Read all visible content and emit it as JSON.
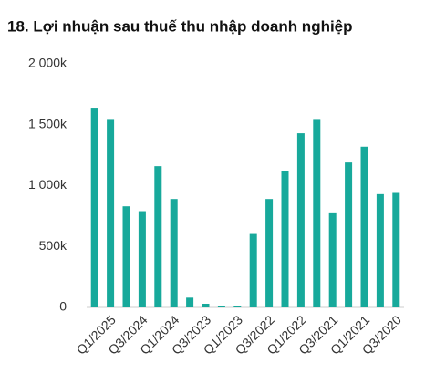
{
  "chart_data": {
    "type": "bar",
    "title": "18. Lợi nhuận sau thuế thu nhập doanh nghiệp",
    "categories": [
      null,
      "Q1/2025",
      null,
      "Q3/2024",
      null,
      "Q1/2024",
      null,
      "Q3/2023",
      null,
      "Q1/2023",
      null,
      "Q3/2022",
      null,
      "Q1/2022",
      null,
      "Q3/2021",
      null,
      "Q1/2021",
      null,
      "Q3/2020"
    ],
    "values": [
      1640000,
      1540000,
      830000,
      790000,
      1160000,
      890000,
      80000,
      30000,
      15000,
      15000,
      610000,
      890000,
      1120000,
      1430000,
      1540000,
      780000,
      1190000,
      1320000,
      930000,
      940000
    ],
    "color": "#17a99b",
    "ylim": [
      0,
      2000000
    ],
    "yticks": [
      0,
      {
        "value": 500000,
        "label": "500k"
      },
      {
        "value": 1000000,
        "label": "1 000k"
      },
      {
        "value": 1500000,
        "label": "1 500k"
      },
      {
        "value": 2000000,
        "label": "2 000k"
      }
    ],
    "grid": false
  }
}
